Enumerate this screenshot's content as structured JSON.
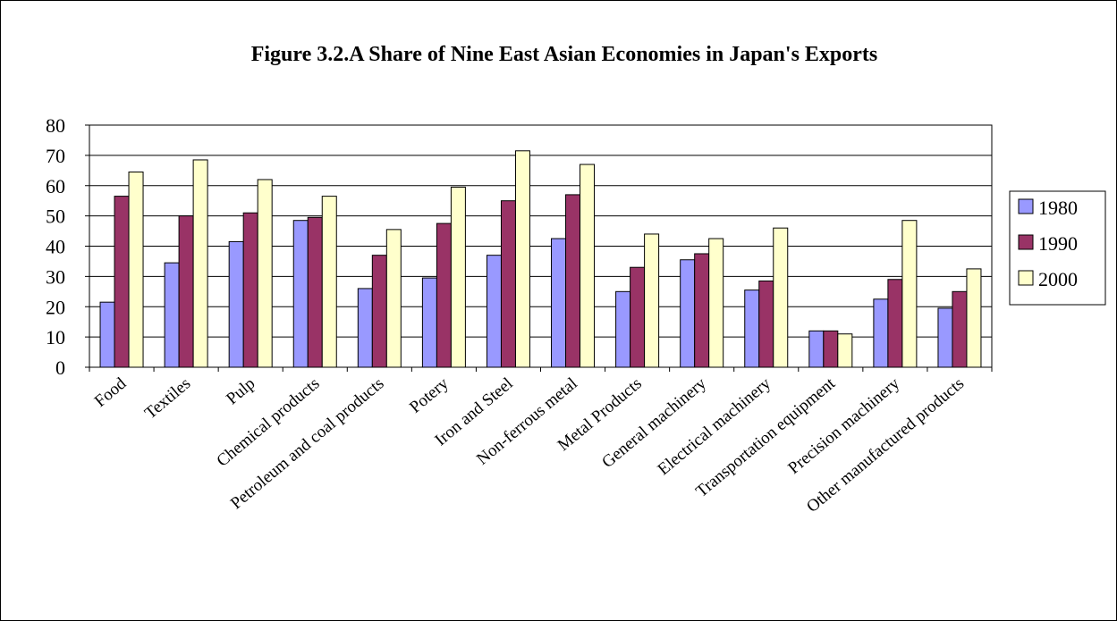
{
  "chart_data": {
    "type": "bar",
    "title": "Figure 3.2.A Share of Nine East Asian Economies in Japan's Exports",
    "xlabel": "",
    "ylabel": "",
    "ylim": [
      0,
      80
    ],
    "yticks": [
      0,
      10,
      20,
      30,
      40,
      50,
      60,
      70,
      80
    ],
    "grid": true,
    "legend": "right",
    "categories": [
      "Food",
      "Textiles",
      "Pulp",
      "Chemical products",
      "Petroleum and coal products",
      "Potery",
      "Iron and Steel",
      "Non-ferrous metal",
      "Metal Products",
      "General machinery",
      "Electrical machinery",
      "Transportation equipment",
      "Precision machinery",
      "Other manufactured products"
    ],
    "series": [
      {
        "name": "1980",
        "color": "#9999ff",
        "values": [
          21.5,
          34.5,
          41.5,
          48.5,
          26,
          29.5,
          37,
          42.5,
          25,
          35.5,
          25.5,
          12,
          22.5,
          19.5
        ]
      },
      {
        "name": "1990",
        "color": "#993366",
        "values": [
          56.5,
          50,
          51,
          49.5,
          37,
          47.5,
          55,
          57,
          33,
          37.5,
          28.5,
          12,
          29,
          25
        ]
      },
      {
        "name": "2000",
        "color": "#ffffcc",
        "values": [
          64.5,
          68.5,
          62,
          56.5,
          45.5,
          59.5,
          71.5,
          67,
          44,
          42.5,
          46,
          11,
          48.5,
          32.5
        ]
      }
    ]
  }
}
